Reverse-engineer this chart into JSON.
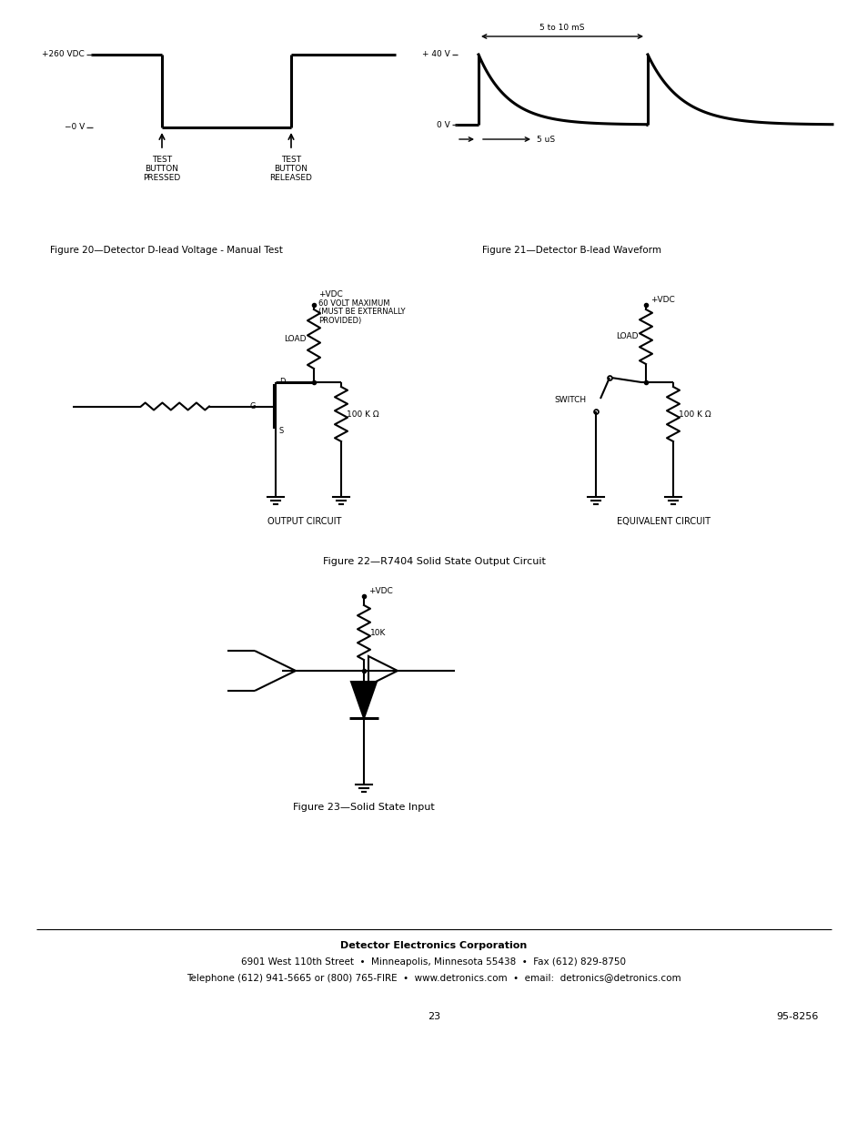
{
  "page_num": "23",
  "doc_num": "95-8256",
  "bg_color": "#ffffff",
  "fig20_caption": "Figure 20—Detector D-lead Voltage - Manual Test",
  "fig21_caption": "Figure 21—Detector B-lead Waveform",
  "fig22_caption": "Figure 22—R7404 Solid State Output Circuit",
  "fig23_caption": "Figure 23—Solid State Input",
  "footer_line1": "Detector Electronics Corporation",
  "footer_line2": "6901 West 110th Street  •  Minneapolis, Minnesota 55438  •  Fax (612) 829-8750",
  "footer_line3": "Telephone (612) 941-5665 or (800) 765-FIRE  •  www.detronics.com  •  email:  detronics@detronics.com"
}
